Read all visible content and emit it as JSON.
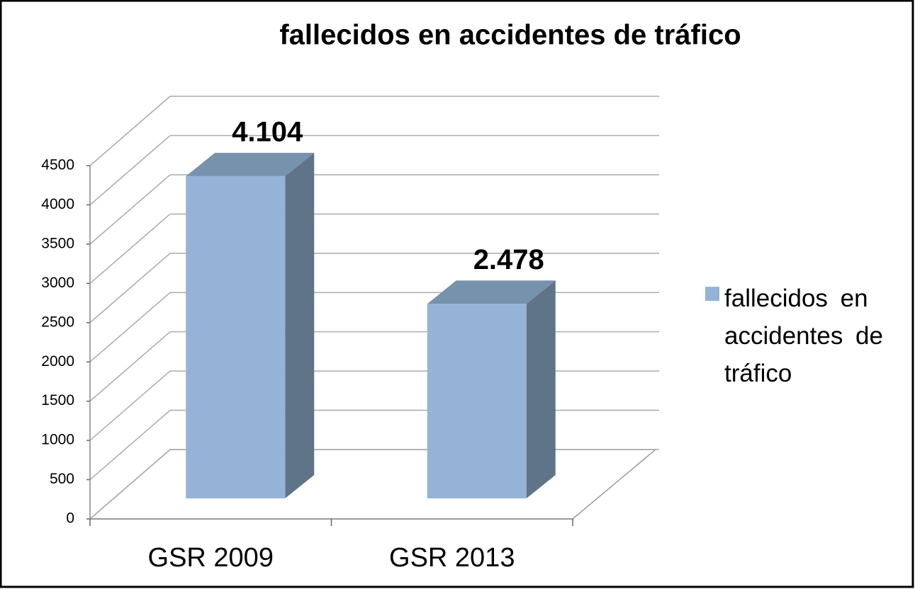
{
  "chart_data": {
    "type": "bar3d",
    "title": "fallecidos en accidentes de tráfico",
    "categories": [
      "GSR 2009",
      "GSR 2013"
    ],
    "series": [
      {
        "name": "fallecidos en accidentes de tráfico",
        "color": "#95b3d7",
        "values": [
          4104,
          2478
        ],
        "value_labels": [
          "4.104",
          "2.478"
        ]
      }
    ],
    "ylim": [
      0,
      4500
    ],
    "yticks": [
      0,
      500,
      1000,
      1500,
      2000,
      2500,
      3000,
      3500,
      4000,
      4500
    ],
    "grid": true,
    "legend": "right"
  }
}
